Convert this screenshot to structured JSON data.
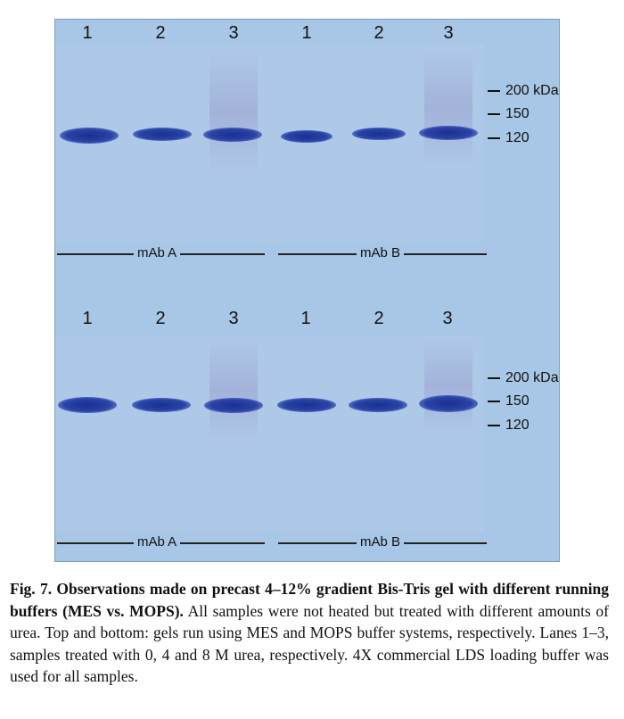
{
  "figure": {
    "top_gel": {
      "lanes": [
        "1",
        "2",
        "3",
        "1",
        "2",
        "3"
      ],
      "markers": [
        "200 kDa",
        "150",
        "120"
      ],
      "groups": [
        "mAb A",
        "mAb B"
      ]
    },
    "bottom_gel": {
      "lanes": [
        "1",
        "2",
        "3",
        "1",
        "2",
        "3"
      ],
      "markers": [
        "200 kDa",
        "150",
        "120"
      ],
      "groups": [
        "mAb A",
        "mAb B"
      ]
    }
  },
  "caption": {
    "bold": "Fig. 7. Observations made on precast 4–12% gradient Bis-Tris gel with different running buffers (MES vs. MOPS).",
    "text": " All samples were not heated but treated with different amounts of urea. Top and bottom: gels run using MES and MOPS buffer systems, respectively. Lanes 1–3, samples treated with 0, 4 and 8 M urea, respectively. 4X commercial LDS loading buffer was used for all samples."
  }
}
